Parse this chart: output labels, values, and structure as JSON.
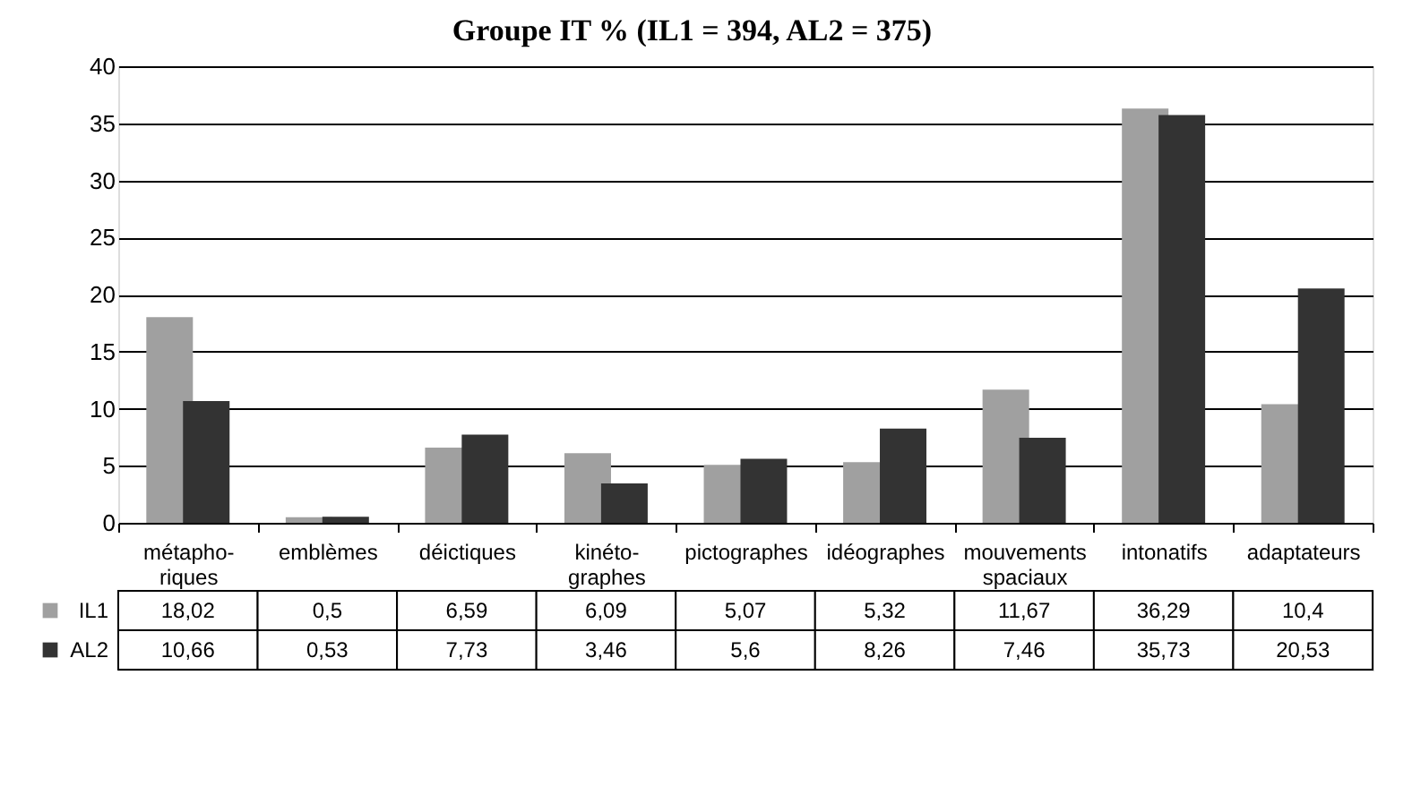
{
  "chart_data": {
    "type": "bar",
    "title": "Groupe IT % (IL1 = 394, AL2 = 375)",
    "categories": [
      "métapho-\nriques",
      "emblèmes",
      "déictiques",
      "kinéto-\ngraphes",
      "pictographes",
      "idéographes",
      "mouvements\nspaciaux",
      "intonatifs",
      "adaptateurs"
    ],
    "series": [
      {
        "name": "IL1",
        "color": "#a0a0a0",
        "values": [
          18.02,
          0.5,
          6.59,
          6.09,
          5.07,
          5.32,
          11.67,
          36.29,
          10.4
        ],
        "value_labels": [
          "18,02",
          "0,5",
          "6,59",
          "6,09",
          "5,07",
          "5,32",
          "11,67",
          "36,29",
          "10,4"
        ]
      },
      {
        "name": "AL2",
        "color": "#333333",
        "values": [
          10.66,
          0.53,
          7.73,
          3.46,
          5.6,
          8.26,
          7.46,
          35.73,
          20.53
        ],
        "value_labels": [
          "10,66",
          "0,53",
          "7,73",
          "3,46",
          "5,6",
          "8,26",
          "7,46",
          "35,73",
          "20,53"
        ]
      }
    ],
    "ylim": [
      0,
      40
    ],
    "yticks": [
      0,
      5,
      10,
      15,
      20,
      25,
      30,
      35,
      40
    ],
    "grid": "y",
    "legend": "bottom left"
  }
}
